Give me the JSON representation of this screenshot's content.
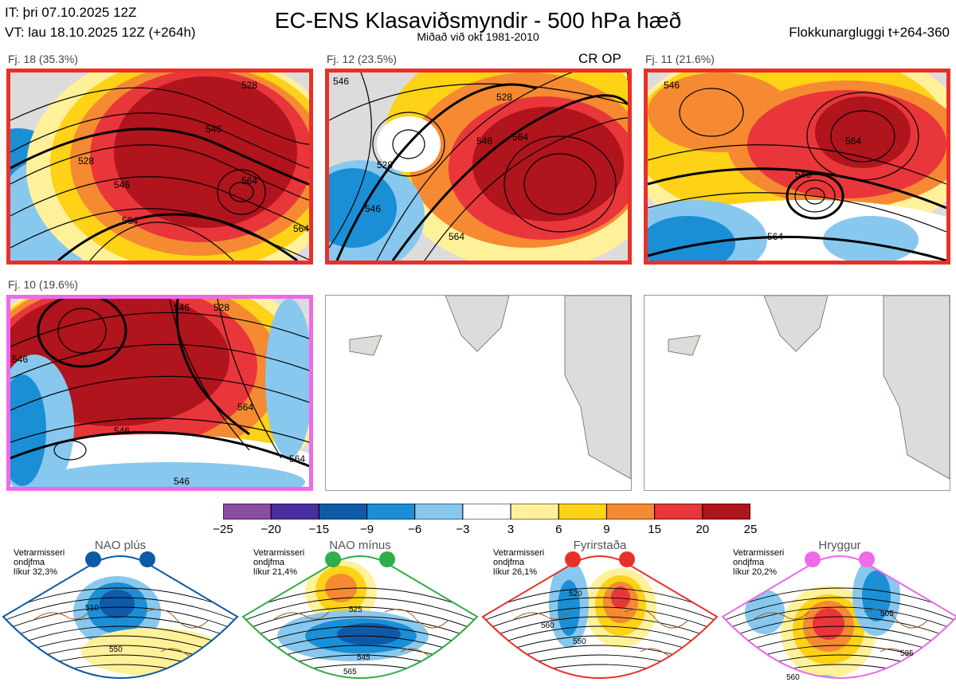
{
  "header": {
    "it_line": "IT: þri 07.10.2025 12Z",
    "vt_line": "VT: lau 18.10.2025 12Z  (+264h)",
    "title": "EC-ENS Klasaviðsmyndir - 500 hPa hæð",
    "subtitle": "Miðað við okt 1981-2010",
    "window": "Flokkunargluggi t+264-360"
  },
  "clusters": [
    {
      "label": "Fj. 18 (35.3%)",
      "border_color": "#e8302a",
      "contours": [
        "528",
        "546",
        "564",
        "564",
        "546",
        "528",
        "564"
      ]
    },
    {
      "label": "Fj. 12 (23.5%)",
      "border_color": "#e8302a",
      "tag": "CR OP",
      "contours": [
        "546",
        "528",
        "546",
        "564",
        "528",
        "546",
        "564"
      ]
    },
    {
      "label": "Fj. 11 (21.6%)",
      "border_color": "#e8302a",
      "contours": [
        "546",
        "546",
        "564",
        "564"
      ]
    },
    {
      "label": "Fj. 10 (19.6%)",
      "border_color": "#ee6ae8",
      "contours": [
        "546",
        "528",
        "546",
        "564",
        "564",
        "546",
        "546"
      ]
    }
  ],
  "colorbar": {
    "ticks": [
      "−25",
      "−20",
      "−15",
      "−9",
      "−6",
      "−3",
      "3",
      "6",
      "9",
      "15",
      "20",
      "25"
    ],
    "colors": [
      "#8a4da0",
      "#4a2fa0",
      "#0f5aa8",
      "#1a8fd6",
      "#88c8ee",
      "#ffffff",
      "#fff19a",
      "#fdd217",
      "#f58a32",
      "#e8363a",
      "#b0141c"
    ]
  },
  "regimes": [
    {
      "name": "NAO plús",
      "period": "Vetrarmisseri",
      "label": "ondjfma",
      "prob": "líkur 32,3%",
      "color": "#0d5aa7",
      "contours": [
        "510",
        "550"
      ]
    },
    {
      "name": "NAO mínus",
      "period": "Vetrarmisseri",
      "label": "ondjfma",
      "prob": "líkur 21,4%",
      "color": "#2fae4a",
      "contours": [
        "525",
        "545",
        "565"
      ]
    },
    {
      "name": "Fyrirstaða",
      "period": "Vetrarmisseri",
      "label": "ondjfma",
      "prob": "líkur 26,1%",
      "color": "#e8302a",
      "contours": [
        "520",
        "550",
        "560"
      ]
    },
    {
      "name": "Hryggur",
      "period": "Vetrarmisseri",
      "label": "ondjfma",
      "prob": "líkur 20,2%",
      "color": "#ee6ae8",
      "contours": [
        "505",
        "535",
        "560"
      ]
    }
  ]
}
